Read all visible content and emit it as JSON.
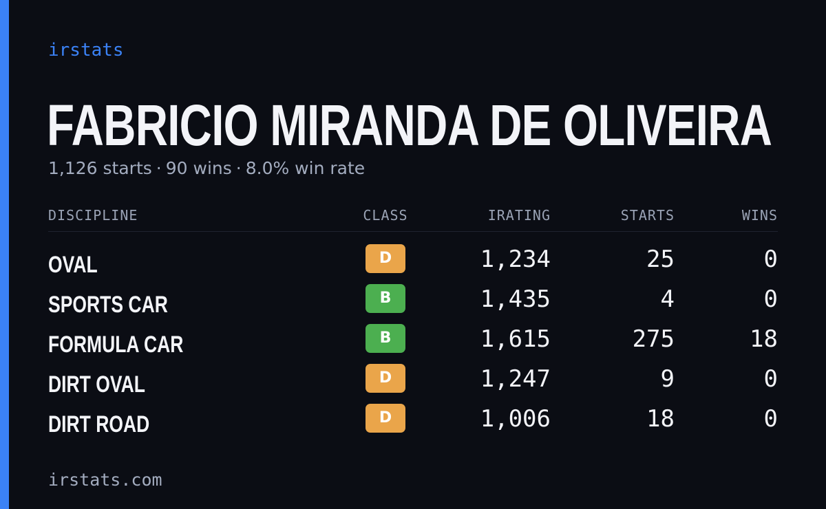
{
  "brand": "irstats",
  "player": {
    "name": "FABRICIO MIRANDA DE OLIVEIRA"
  },
  "summary": {
    "starts": "1,126 starts",
    "wins": "90 wins",
    "win_rate": "8.0% win rate",
    "separator": "·"
  },
  "table": {
    "headers": {
      "discipline": "DISCIPLINE",
      "class": "CLASS",
      "irating": "IRATING",
      "starts": "STARTS",
      "wins": "WINS"
    },
    "rows": [
      {
        "discipline": "OVAL",
        "class": "D",
        "class_color": "#eaa54a",
        "irating": "1,234",
        "starts": "25",
        "wins": "0"
      },
      {
        "discipline": "SPORTS CAR",
        "class": "B",
        "class_color": "#4caf50",
        "irating": "1,435",
        "starts": "4",
        "wins": "0"
      },
      {
        "discipline": "FORMULA CAR",
        "class": "B",
        "class_color": "#4caf50",
        "irating": "1,615",
        "starts": "275",
        "wins": "18"
      },
      {
        "discipline": "DIRT OVAL",
        "class": "D",
        "class_color": "#eaa54a",
        "irating": "1,247",
        "starts": "9",
        "wins": "0"
      },
      {
        "discipline": "DIRT ROAD",
        "class": "D",
        "class_color": "#eaa54a",
        "irating": "1,006",
        "starts": "18",
        "wins": "0"
      }
    ]
  },
  "footer": {
    "site": "irstats.com"
  },
  "colors": {
    "accent": "#3b82f6",
    "background": "#0b0d14"
  }
}
